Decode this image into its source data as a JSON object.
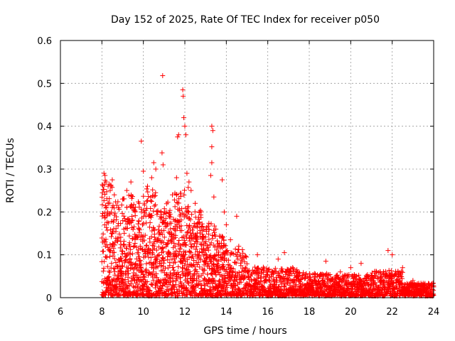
{
  "chart_data": {
    "type": "scatter",
    "title": "Day 152 of 2025, Rate Of TEC Index for receiver p050",
    "xlabel": "GPS time / hours",
    "ylabel": "ROTI / TECUs",
    "xlim": [
      6,
      24
    ],
    "ylim": [
      0,
      0.6
    ],
    "xticks": [
      "6",
      "8",
      "10",
      "12",
      "14",
      "16",
      "18",
      "20",
      "22",
      "24"
    ],
    "yticks": [
      "0",
      "0.1",
      "0.2",
      "0.3",
      "0.4",
      "0.5",
      "0.6"
    ],
    "grid": true,
    "marker": "plus",
    "marker_color": "#ff0000",
    "series": [
      {
        "name": "ROTI",
        "points": [
          [
            8.1,
            0.29
          ],
          [
            8.15,
            0.285
          ],
          [
            8.2,
            0.27
          ],
          [
            8.3,
            0.26
          ],
          [
            8.4,
            0.25
          ],
          [
            8.5,
            0.275
          ],
          [
            8.6,
            0.24
          ],
          [
            8.8,
            0.21
          ],
          [
            9.0,
            0.23
          ],
          [
            9.2,
            0.25
          ],
          [
            9.4,
            0.27
          ],
          [
            9.6,
            0.2
          ],
          [
            9.8,
            0.22
          ],
          [
            9.9,
            0.365
          ],
          [
            10.0,
            0.295
          ],
          [
            10.2,
            0.26
          ],
          [
            10.4,
            0.28
          ],
          [
            10.5,
            0.315
          ],
          [
            10.6,
            0.3
          ],
          [
            10.9,
            0.338
          ],
          [
            10.95,
            0.31
          ],
          [
            10.93,
            0.518
          ],
          [
            11.1,
            0.2
          ],
          [
            11.4,
            0.24
          ],
          [
            11.6,
            0.28
          ],
          [
            11.65,
            0.375
          ],
          [
            11.7,
            0.38
          ],
          [
            11.9,
            0.485
          ],
          [
            11.92,
            0.47
          ],
          [
            11.95,
            0.42
          ],
          [
            12.0,
            0.4
          ],
          [
            12.05,
            0.38
          ],
          [
            12.1,
            0.29
          ],
          [
            12.2,
            0.27
          ],
          [
            12.3,
            0.25
          ],
          [
            12.5,
            0.22
          ],
          [
            12.7,
            0.2
          ],
          [
            13.3,
            0.4
          ],
          [
            13.35,
            0.39
          ],
          [
            13.3,
            0.352
          ],
          [
            13.3,
            0.315
          ],
          [
            13.25,
            0.285
          ],
          [
            13.4,
            0.235
          ],
          [
            13.8,
            0.275
          ],
          [
            13.9,
            0.2
          ],
          [
            14.0,
            0.17
          ],
          [
            14.2,
            0.135
          ],
          [
            14.5,
            0.19
          ],
          [
            14.6,
            0.12
          ],
          [
            15.5,
            0.1
          ],
          [
            16.5,
            0.09
          ],
          [
            16.8,
            0.105
          ],
          [
            17.2,
            0.07
          ],
          [
            18.0,
            0.05
          ],
          [
            18.8,
            0.085
          ],
          [
            19.5,
            0.06
          ],
          [
            20.0,
            0.07
          ],
          [
            20.5,
            0.08
          ],
          [
            21.2,
            0.05
          ],
          [
            21.8,
            0.11
          ],
          [
            22.0,
            0.1
          ],
          [
            22.5,
            0.07
          ],
          [
            23.0,
            0.04
          ],
          [
            23.5,
            0.03
          ],
          [
            24.0,
            0.025
          ]
        ]
      }
    ]
  }
}
